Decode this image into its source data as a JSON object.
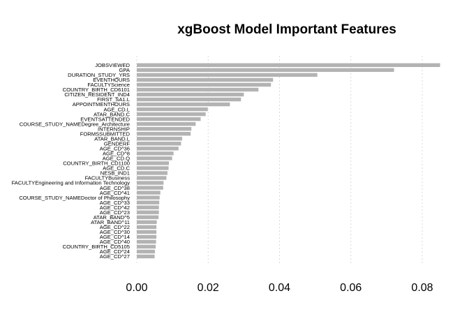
{
  "chart_data": {
    "type": "bar",
    "orientation": "horizontal",
    "title": "xgBoost Model Important Features",
    "xlabel": "",
    "ylabel": "",
    "xlim": [
      0,
      0.085
    ],
    "xticks": [
      "0.00",
      "0.02",
      "0.04",
      "0.06",
      "0.08"
    ],
    "xtick_values": [
      0,
      0.02,
      0.04,
      0.06,
      0.08
    ],
    "grid": "vertical-dashed",
    "bar_color": "#b3b3b3",
    "categories": [
      "JOBSVIEWED",
      "GPA",
      "DURATION_STUDY_YRS",
      "EVENTHOURS",
      "FACULTYScience",
      "COUNTRY_BIRTH_CD6101",
      "CITIZEN_RESIDENT_IND4",
      "FIRST_SA1.L",
      "APPOINTMENTHOURS",
      "AGE_CD.L",
      "ATAR_BAND.C",
      "EVENTSATTENDED",
      "COURSE_STUDY_NAMEDegree_Architecture",
      "INTERNSHIP",
      "FORMSSUBMITTED",
      "ATAR_BAND.L",
      "GENDERF",
      "AGE_CD^36",
      "AGE_CD^8",
      "AGE_CD.Q",
      "COUNTRY_BIRTH_CD1100",
      "AGE_CD.C",
      "NESB_IND1",
      "FACULTYBusiness",
      "FACULTYEngineering and Information Technology",
      "AGE_CD^38",
      "AGE_CD^41",
      "COURSE_STUDY_NAMEDoctor of Philosophy",
      "AGE_CD^33",
      "AGE_CD^42",
      "AGE_CD^23",
      "ATAR_BAND^5",
      "ATAR_BAND^11",
      "AGE_CD^22",
      "AGE_CD^30",
      "AGE_CD^14",
      "AGE_CD^40",
      "COUNTRY_BIRTH_CD5105",
      "AGE_CD^24",
      "AGE_CD^27"
    ],
    "values": [
      0.0852,
      0.0721,
      0.0506,
      0.0382,
      0.0376,
      0.0341,
      0.03,
      0.0292,
      0.0261,
      0.0199,
      0.0193,
      0.0179,
      0.0165,
      0.0153,
      0.0151,
      0.0127,
      0.0124,
      0.0117,
      0.0103,
      0.0099,
      0.009,
      0.0089,
      0.0086,
      0.0083,
      0.0075,
      0.0074,
      0.0066,
      0.0064,
      0.0063,
      0.0062,
      0.0062,
      0.0061,
      0.0056,
      0.0055,
      0.0055,
      0.0055,
      0.0054,
      0.0053,
      0.0051,
      0.005
    ]
  }
}
